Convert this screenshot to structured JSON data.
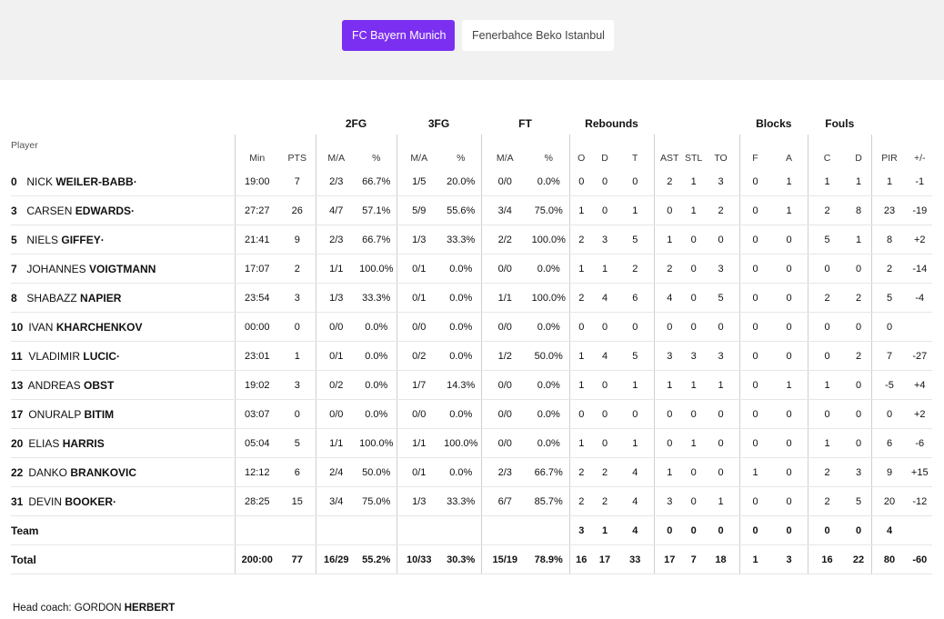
{
  "tabs": [
    {
      "label": "FC Bayern Munich",
      "active": true
    },
    {
      "label": "Fenerbahce Beko Istanbul",
      "active": false
    }
  ],
  "colors": {
    "accent": "#7b2ff0"
  },
  "groups": {
    "fg2": "2FG",
    "fg3": "3FG",
    "ft": "FT",
    "reb": "Rebounds",
    "blk": "Blocks",
    "fouls": "Fouls"
  },
  "columns": {
    "player": "Player",
    "min": "Min",
    "pts": "PTS",
    "fg2_ma": "M/A",
    "fg2_pct": "%",
    "fg3_ma": "M/A",
    "fg3_pct": "%",
    "ft_ma": "M/A",
    "ft_pct": "%",
    "o": "O",
    "d": "D",
    "t": "T",
    "ast": "AST",
    "stl": "STL",
    "to": "TO",
    "blk_f": "F",
    "blk_a": "A",
    "foul_c": "C",
    "foul_d": "D",
    "pir": "PIR",
    "pm": "+/-"
  },
  "players": [
    {
      "num": "0",
      "first": "NICK",
      "last": "WEILER-BABB",
      "mark": "·",
      "min": "19:00",
      "pts": "7",
      "fg2": "2/3",
      "fg2p": "66.7%",
      "fg3": "1/5",
      "fg3p": "20.0%",
      "ft": "0/0",
      "ftp": "0.0%",
      "o": "0",
      "d": "0",
      "t": "0",
      "ast": "2",
      "stl": "1",
      "to": "3",
      "bf": "0",
      "ba": "1",
      "fc": "1",
      "fd": "1",
      "pir": "1",
      "pm": "-1"
    },
    {
      "num": "3",
      "first": "CARSEN",
      "last": "EDWARDS",
      "mark": "·",
      "min": "27:27",
      "pts": "26",
      "fg2": "4/7",
      "fg2p": "57.1%",
      "fg3": "5/9",
      "fg3p": "55.6%",
      "ft": "3/4",
      "ftp": "75.0%",
      "o": "1",
      "d": "0",
      "t": "1",
      "ast": "0",
      "stl": "1",
      "to": "2",
      "bf": "0",
      "ba": "1",
      "fc": "2",
      "fd": "8",
      "pir": "23",
      "pm": "-19"
    },
    {
      "num": "5",
      "first": "NIELS",
      "last": "GIFFEY",
      "mark": "·",
      "min": "21:41",
      "pts": "9",
      "fg2": "2/3",
      "fg2p": "66.7%",
      "fg3": "1/3",
      "fg3p": "33.3%",
      "ft": "2/2",
      "ftp": "100.0%",
      "o": "2",
      "d": "3",
      "t": "5",
      "ast": "1",
      "stl": "0",
      "to": "0",
      "bf": "0",
      "ba": "0",
      "fc": "5",
      "fd": "1",
      "pir": "8",
      "pm": "+2"
    },
    {
      "num": "7",
      "first": "JOHANNES",
      "last": "VOIGTMANN",
      "mark": "",
      "min": "17:07",
      "pts": "2",
      "fg2": "1/1",
      "fg2p": "100.0%",
      "fg3": "0/1",
      "fg3p": "0.0%",
      "ft": "0/0",
      "ftp": "0.0%",
      "o": "1",
      "d": "1",
      "t": "2",
      "ast": "2",
      "stl": "0",
      "to": "3",
      "bf": "0",
      "ba": "0",
      "fc": "0",
      "fd": "0",
      "pir": "2",
      "pm": "-14"
    },
    {
      "num": "8",
      "first": "SHABAZZ",
      "last": "NAPIER",
      "mark": "",
      "min": "23:54",
      "pts": "3",
      "fg2": "1/3",
      "fg2p": "33.3%",
      "fg3": "0/1",
      "fg3p": "0.0%",
      "ft": "1/1",
      "ftp": "100.0%",
      "o": "2",
      "d": "4",
      "t": "6",
      "ast": "4",
      "stl": "0",
      "to": "5",
      "bf": "0",
      "ba": "0",
      "fc": "2",
      "fd": "2",
      "pir": "5",
      "pm": "-4"
    },
    {
      "num": "10",
      "first": "IVAN",
      "last": "KHARCHENKOV",
      "mark": "",
      "min": "00:00",
      "pts": "0",
      "fg2": "0/0",
      "fg2p": "0.0%",
      "fg3": "0/0",
      "fg3p": "0.0%",
      "ft": "0/0",
      "ftp": "0.0%",
      "o": "0",
      "d": "0",
      "t": "0",
      "ast": "0",
      "stl": "0",
      "to": "0",
      "bf": "0",
      "ba": "0",
      "fc": "0",
      "fd": "0",
      "pir": "0",
      "pm": ""
    },
    {
      "num": "11",
      "first": "VLADIMIR",
      "last": "LUCIC",
      "mark": "·",
      "min": "23:01",
      "pts": "1",
      "fg2": "0/1",
      "fg2p": "0.0%",
      "fg3": "0/2",
      "fg3p": "0.0%",
      "ft": "1/2",
      "ftp": "50.0%",
      "o": "1",
      "d": "4",
      "t": "5",
      "ast": "3",
      "stl": "3",
      "to": "3",
      "bf": "0",
      "ba": "0",
      "fc": "0",
      "fd": "2",
      "pir": "7",
      "pm": "-27"
    },
    {
      "num": "13",
      "first": "ANDREAS",
      "last": "OBST",
      "mark": "",
      "min": "19:02",
      "pts": "3",
      "fg2": "0/2",
      "fg2p": "0.0%",
      "fg3": "1/7",
      "fg3p": "14.3%",
      "ft": "0/0",
      "ftp": "0.0%",
      "o": "1",
      "d": "0",
      "t": "1",
      "ast": "1",
      "stl": "1",
      "to": "1",
      "bf": "0",
      "ba": "1",
      "fc": "1",
      "fd": "0",
      "pir": "-5",
      "pm": "+4"
    },
    {
      "num": "17",
      "first": "ONURALP",
      "last": "BITIM",
      "mark": "",
      "min": "03:07",
      "pts": "0",
      "fg2": "0/0",
      "fg2p": "0.0%",
      "fg3": "0/0",
      "fg3p": "0.0%",
      "ft": "0/0",
      "ftp": "0.0%",
      "o": "0",
      "d": "0",
      "t": "0",
      "ast": "0",
      "stl": "0",
      "to": "0",
      "bf": "0",
      "ba": "0",
      "fc": "0",
      "fd": "0",
      "pir": "0",
      "pm": "+2"
    },
    {
      "num": "20",
      "first": "ELIAS",
      "last": "HARRIS",
      "mark": "",
      "min": "05:04",
      "pts": "5",
      "fg2": "1/1",
      "fg2p": "100.0%",
      "fg3": "1/1",
      "fg3p": "100.0%",
      "ft": "0/0",
      "ftp": "0.0%",
      "o": "1",
      "d": "0",
      "t": "1",
      "ast": "0",
      "stl": "1",
      "to": "0",
      "bf": "0",
      "ba": "0",
      "fc": "1",
      "fd": "0",
      "pir": "6",
      "pm": "-6"
    },
    {
      "num": "22",
      "first": "DANKO",
      "last": "BRANKOVIC",
      "mark": "",
      "min": "12:12",
      "pts": "6",
      "fg2": "2/4",
      "fg2p": "50.0%",
      "fg3": "0/1",
      "fg3p": "0.0%",
      "ft": "2/3",
      "ftp": "66.7%",
      "o": "2",
      "d": "2",
      "t": "4",
      "ast": "1",
      "stl": "0",
      "to": "0",
      "bf": "1",
      "ba": "0",
      "fc": "2",
      "fd": "3",
      "pir": "9",
      "pm": "+15"
    },
    {
      "num": "31",
      "first": "DEVIN",
      "last": "BOOKER",
      "mark": "·",
      "min": "28:25",
      "pts": "15",
      "fg2": "3/4",
      "fg2p": "75.0%",
      "fg3": "1/3",
      "fg3p": "33.3%",
      "ft": "6/7",
      "ftp": "85.7%",
      "o": "2",
      "d": "2",
      "t": "4",
      "ast": "3",
      "stl": "0",
      "to": "1",
      "bf": "0",
      "ba": "0",
      "fc": "2",
      "fd": "5",
      "pir": "20",
      "pm": "-12"
    }
  ],
  "team": {
    "label": "Team",
    "o": "3",
    "d": "1",
    "t": "4",
    "ast": "0",
    "stl": "0",
    "to": "0",
    "bf": "0",
    "ba": "0",
    "fc": "0",
    "fd": "0",
    "pir": "4"
  },
  "total": {
    "label": "Total",
    "min": "200:00",
    "pts": "77",
    "fg2": "16/29",
    "fg2p": "55.2%",
    "fg3": "10/33",
    "fg3p": "30.3%",
    "ft": "15/19",
    "ftp": "78.9%",
    "o": "16",
    "d": "17",
    "t": "33",
    "ast": "17",
    "stl": "7",
    "to": "18",
    "bf": "1",
    "ba": "3",
    "fc": "16",
    "fd": "22",
    "pir": "80",
    "pm": "-60"
  },
  "coach": {
    "label": "Head coach:",
    "first": "GORDON",
    "last": "HERBERT"
  }
}
